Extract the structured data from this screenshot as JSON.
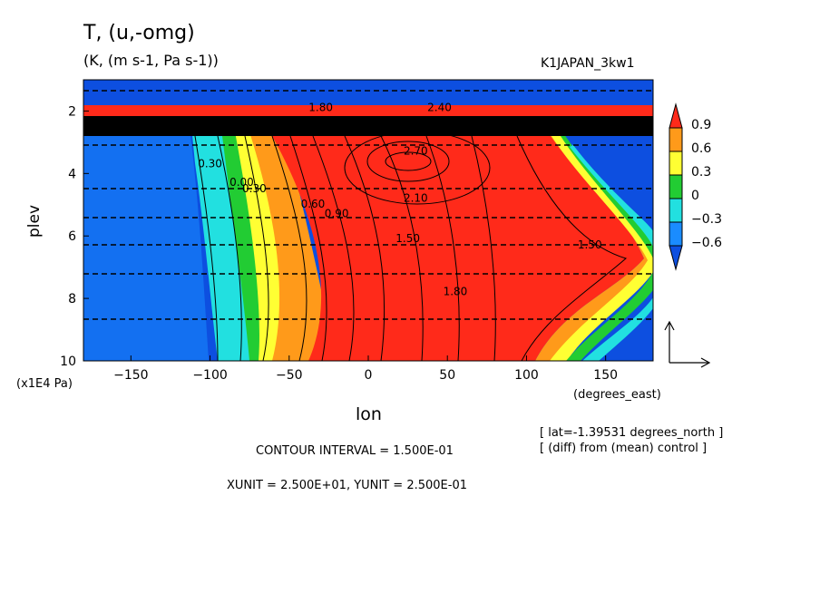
{
  "header": {
    "title": "T, (u,-omg)",
    "subtitle": "(K, (m s-1, Pa s-1))",
    "run_name": "K1JAPAN_3kw1"
  },
  "footer": {
    "lat_note": "[ lat=-1.39531 degrees_north ]",
    "diff_note": "[ (diff) from (mean) control ]",
    "contour_interval": "CONTOUR INTERVAL = 1.500E-01",
    "vector_units": "XUNIT = 2.500E+01, YUNIT = 2.500E-01"
  },
  "chart_data": {
    "type": "heatmap",
    "title": "T, (u,-omg)",
    "subtitle": "(K, (m s-1, Pa s-1))",
    "xlabel": "lon",
    "xunit": "(degrees_east)",
    "ylabel": "plev",
    "yunit": "(x1E4 Pa)",
    "xlim": [
      -180,
      180
    ],
    "ylim": [
      10,
      1
    ],
    "x_ticks": [
      -150,
      -100,
      -50,
      0,
      50,
      100,
      150
    ],
    "y_ticks": [
      2,
      4,
      6,
      8,
      10
    ],
    "colorbar": {
      "levels": [
        "0.9",
        "0.6",
        "0.3",
        "0",
        "-0.3",
        "-0.6"
      ],
      "colors": [
        "#ff2a1a",
        "#ff9a1a",
        "#ffff33",
        "#22cc33",
        "#22e0e0",
        "#1a8cff",
        "#0d4fe0"
      ]
    },
    "contour_labels": [
      {
        "text": "2.70",
        "lon": 30,
        "plev": 3.4
      },
      {
        "text": "2.40",
        "lon": 45,
        "plev": 2.0
      },
      {
        "text": "2.10",
        "lon": 30,
        "plev": 4.9
      },
      {
        "text": "1.80",
        "lon": -30,
        "plev": 2.0
      },
      {
        "text": "1.50",
        "lon": 25,
        "plev": 6.2
      },
      {
        "text": "1.80",
        "lon": 55,
        "plev": 7.9
      },
      {
        "text": "0.90",
        "lon": -20,
        "plev": 5.4
      },
      {
        "text": "0.60",
        "lon": -35,
        "plev": 5.1
      },
      {
        "text": "0.30",
        "lon": -72,
        "plev": 4.6
      },
      {
        "text": "0.00",
        "lon": -80,
        "plev": 4.4
      },
      {
        "text": "0.30",
        "lon": -100,
        "plev": 3.8
      },
      {
        "text": "1.50",
        "lon": 140,
        "plev": 6.4
      }
    ],
    "legend": "right"
  }
}
